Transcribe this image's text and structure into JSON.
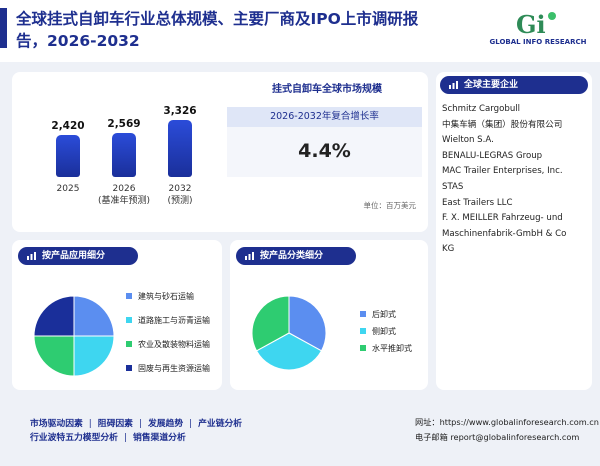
{
  "header": {
    "title_line1": "全球挂式自卸车行业总体规模、主要厂商及IPO上市调研报",
    "title_line2": "告，2026-2032",
    "logo_text": "GLOBAL INFO RESEARCH",
    "logo_mark": "Gi"
  },
  "market": {
    "title": "挂式自卸车全球市场规模",
    "cagr_label": "2026-2032年复合增长率",
    "cagr_value": "4.4%",
    "unit": "单位：百万美元"
  },
  "chart_data": {
    "type": "bar",
    "categories": [
      "2025",
      "2026",
      "2032"
    ],
    "category_labels": [
      [
        "2025"
      ],
      [
        "2026",
        "(基准年预测)"
      ],
      [
        "2032",
        "(预测)"
      ]
    ],
    "values": [
      2420,
      2569,
      3326
    ],
    "value_labels": [
      "2,420",
      "2,569",
      "3,326"
    ],
    "title": "",
    "xlabel": "",
    "ylabel": "",
    "ylim": [
      0,
      3600
    ],
    "grid": false,
    "bar_color": "#2340c4"
  },
  "companies": {
    "heading": "全球主要企业",
    "items": [
      "Schmitz Cargobull",
      "中集车辆（集团）股份有限公司",
      "Wielton S.A.",
      "BENALU-LEGRAS Group",
      "MAC Trailer Enterprises, Inc.",
      "STAS",
      "East Trailers LLC",
      "F. X. MEILLER Fahrzeug- und",
      "Maschinenfabrik-GmbH & Co",
      "KG"
    ]
  },
  "application": {
    "heading": "按产品应用细分",
    "pie": {
      "slices": [
        {
          "label": "建筑与砂石运输",
          "value": 25,
          "color": "#5b8ef0"
        },
        {
          "label": "道路施工与沥青运输",
          "value": 25,
          "color": "#3ed6f0"
        },
        {
          "label": "农业及散装物料运输",
          "value": 25,
          "color": "#2ecc71"
        },
        {
          "label": "固废与再生资源运输",
          "value": 25,
          "color": "#1a2f9a"
        }
      ]
    }
  },
  "product_type": {
    "heading": "按产品分类细分",
    "pie": {
      "slices": [
        {
          "label": "后卸式",
          "value": 33,
          "color": "#5b8ef0"
        },
        {
          "label": "侧卸式",
          "value": 34,
          "color": "#3ed6f0"
        },
        {
          "label": "水平推卸式",
          "value": 33,
          "color": "#2ecc71"
        }
      ]
    }
  },
  "footer": {
    "links_row1": [
      "市场驱动因素",
      "阻碍因素",
      "发展趋势",
      "产业链分析"
    ],
    "links_row2": [
      "行业波特五力模型分析",
      "销售渠道分析"
    ],
    "website": "网址：https://www.globalinforesearch.com.cn",
    "email": "电子邮箱 report@globalinforesearch.com"
  }
}
